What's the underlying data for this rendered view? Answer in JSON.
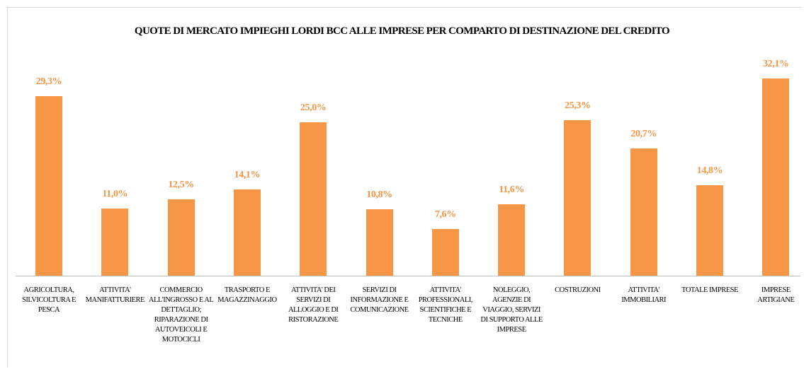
{
  "chart_data": {
    "type": "bar",
    "title": "QUOTE DI MERCATO IMPIEGHI LORDI BCC ALLE IMPRESE PER COMPARTO DI DESTINAZIONE DEL CREDITO",
    "categories": [
      "AGRICOLTURA, SILVICOLTURA E PESCA",
      "ATTIVITA' MANIFATTURIERE",
      "COMMERCIO ALL'INGROSSO E AL DETTAGLIO; RIPARAZIONE DI AUTOVEICOLI E MOTOCICLI",
      "TRASPORTO E MAGAZZINAGGIO",
      "ATTIVITA' DEI SERVIZI DI ALLOGGIO E DI RISTORAZIONE",
      "SERVIZI DI INFORMAZIONE E COMUNICAZIONE",
      "ATTIVITA' PROFESSIONALI, SCIENTIFICHE E TECNICHE",
      "NOLEGGIO, AGENZIE DI VIAGGIO, SERVIZI DI SUPPORTO ALLE IMPRESE",
      "COSTRUZIONI",
      "ATTIVITA' IMMOBILIARI",
      "TOTALE IMPRESE",
      "IMPRESE ARTIGIANE"
    ],
    "values": [
      29.3,
      11.0,
      12.5,
      14.1,
      25.0,
      10.8,
      7.6,
      11.6,
      25.3,
      20.7,
      14.8,
      32.1
    ],
    "value_labels": [
      "29,3%",
      "11,0%",
      "12,5%",
      "14,1%",
      "25,0%",
      "10,8%",
      "7,6%",
      "11,6%",
      "25,3%",
      "20,7%",
      "14,8%",
      "32,1%"
    ],
    "color": "#f79646"
  }
}
